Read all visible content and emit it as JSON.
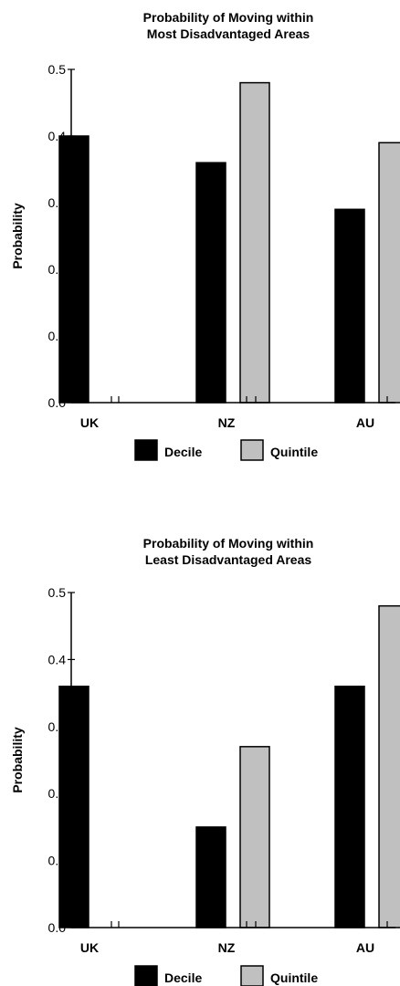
{
  "chart_data": [
    {
      "type": "bar",
      "title_lines": [
        "Probability of Moving within",
        "Most Disadvantaged Areas"
      ],
      "ylabel": "Probability",
      "ylim": [
        0,
        0.5
      ],
      "yticks": [
        "0.0",
        "0.1",
        "0.2",
        "0.3",
        "0.4",
        "0.5"
      ],
      "categories": [
        "UK",
        "NZ",
        "AU"
      ],
      "series": [
        {
          "name": "Decile",
          "color": "#000000",
          "values": [
            0.4,
            0.36,
            0.29
          ]
        },
        {
          "name": "Quintile",
          "color": "#c0c0c0",
          "values": [
            null,
            0.48,
            0.39
          ]
        }
      ],
      "legend": "bottom-center"
    },
    {
      "type": "bar",
      "title_lines": [
        "Probability of Moving within",
        "Least Disadvantaged Areas"
      ],
      "ylabel": "Probability",
      "ylim": [
        0,
        0.5
      ],
      "yticks": [
        "0.0",
        "0.1",
        "0.2",
        "0.3",
        "0.4",
        "0.5"
      ],
      "categories": [
        "UK",
        "NZ",
        "AU"
      ],
      "series": [
        {
          "name": "Decile",
          "color": "#000000",
          "values": [
            0.36,
            0.15,
            0.36
          ]
        },
        {
          "name": "Quintile",
          "color": "#c0c0c0",
          "values": [
            null,
            0.27,
            0.48
          ]
        }
      ],
      "legend": "bottom-center"
    }
  ]
}
